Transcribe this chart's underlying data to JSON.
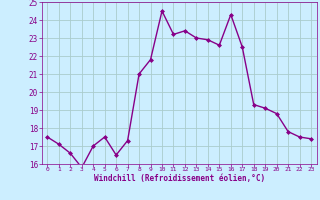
{
  "x": [
    0,
    1,
    2,
    3,
    4,
    5,
    6,
    7,
    8,
    9,
    10,
    11,
    12,
    13,
    14,
    15,
    16,
    17,
    18,
    19,
    20,
    21,
    22,
    23
  ],
  "y": [
    17.5,
    17.1,
    16.6,
    15.8,
    17.0,
    17.5,
    16.5,
    17.3,
    21.0,
    21.8,
    24.5,
    23.2,
    23.4,
    23.0,
    22.9,
    22.6,
    24.3,
    22.5,
    19.3,
    19.1,
    18.8,
    17.8,
    17.5,
    17.4
  ],
  "line_color": "#880088",
  "marker": "D",
  "marker_size": 2,
  "background_color": "#cceeff",
  "grid_color": "#aacccc",
  "xlabel": "Windchill (Refroidissement éolien,°C)",
  "xlim": [
    -0.5,
    23.5
  ],
  "ylim": [
    16,
    25
  ],
  "yticks": [
    16,
    17,
    18,
    19,
    20,
    21,
    22,
    23,
    24,
    25
  ],
  "xticks": [
    0,
    1,
    2,
    3,
    4,
    5,
    6,
    7,
    8,
    9,
    10,
    11,
    12,
    13,
    14,
    15,
    16,
    17,
    18,
    19,
    20,
    21,
    22,
    23
  ],
  "tick_color": "#880088",
  "label_color": "#880088",
  "linewidth": 1.0
}
